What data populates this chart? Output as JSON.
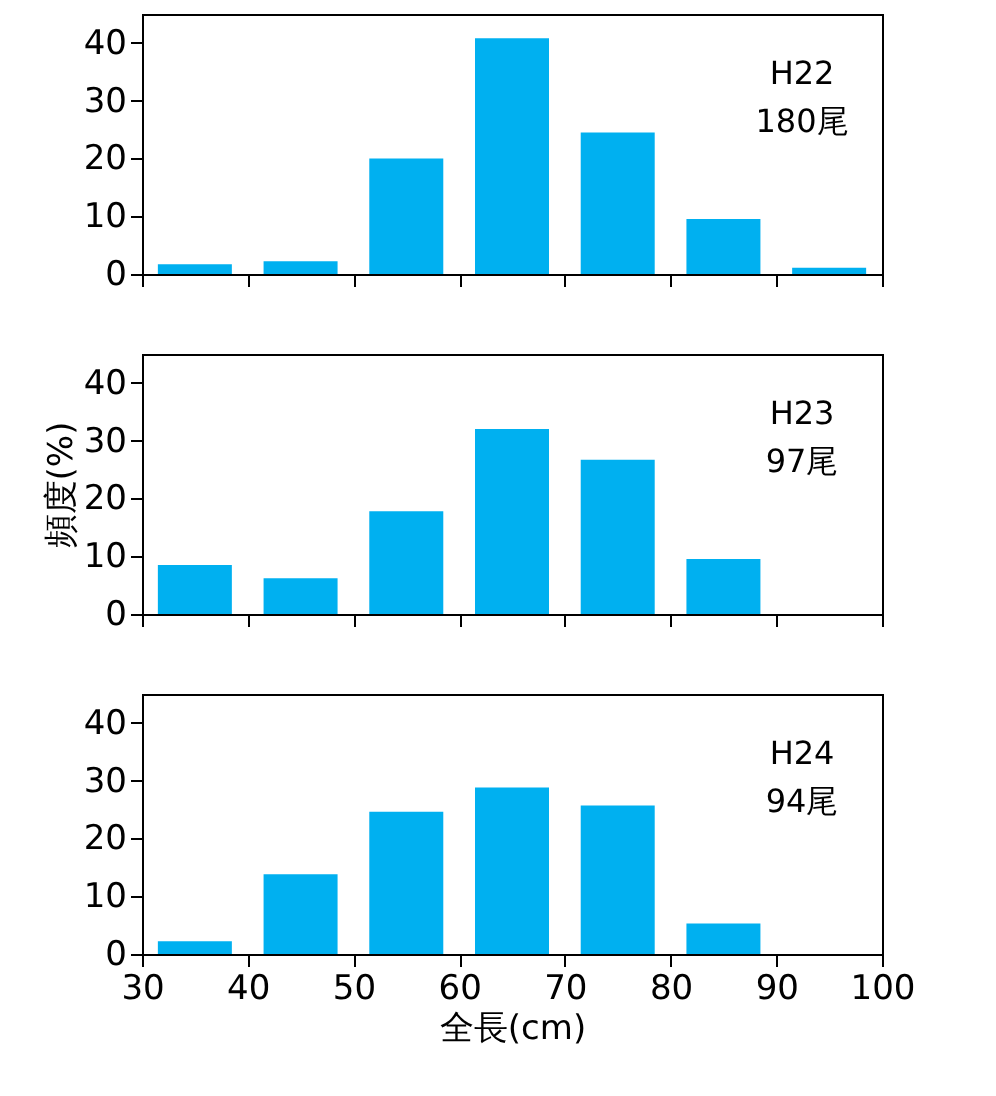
{
  "chart_data": [
    {
      "type": "histogram",
      "bins": [
        30,
        40,
        50,
        60,
        70,
        80,
        90,
        100
      ],
      "values": [
        1.7,
        2.2,
        20,
        40.8,
        24.5,
        9.5,
        1.1
      ],
      "color": "#00b0f0",
      "xlim": [
        30,
        100
      ],
      "xticks": [
        30,
        40,
        50,
        60,
        70,
        80,
        90,
        100
      ],
      "ylim": [
        0,
        45
      ],
      "yticks": [
        0,
        10,
        20,
        30,
        40
      ],
      "annotations": [
        "H22",
        "180尾"
      ],
      "tick_labels": "y"
    },
    {
      "type": "histogram",
      "bins": [
        30,
        40,
        50,
        60,
        70,
        80,
        90,
        100
      ],
      "values": [
        8.5,
        6.2,
        17.8,
        32,
        26.7,
        9.5,
        0
      ],
      "color": "#00b0f0",
      "xlim": [
        30,
        100
      ],
      "xticks": [
        30,
        40,
        50,
        60,
        70,
        80,
        90,
        100
      ],
      "ylim": [
        0,
        45
      ],
      "yticks": [
        0,
        10,
        20,
        30,
        40
      ],
      "ylabel": "頻度(%)",
      "annotations": [
        "H23",
        "97尾"
      ],
      "tick_labels": "y"
    },
    {
      "type": "histogram",
      "bins": [
        30,
        40,
        50,
        60,
        70,
        80,
        90,
        100
      ],
      "values": [
        2.2,
        13.8,
        24.6,
        28.8,
        25.7,
        5.3,
        0
      ],
      "color": "#00b0f0",
      "xlim": [
        30,
        100
      ],
      "xticks": [
        30,
        40,
        50,
        60,
        70,
        80,
        90,
        100
      ],
      "ylim": [
        0,
        45
      ],
      "yticks": [
        0,
        10,
        20,
        30,
        40
      ],
      "xlabel": "全長(cm)",
      "annotations": [
        "H24",
        "94尾"
      ]
    }
  ]
}
